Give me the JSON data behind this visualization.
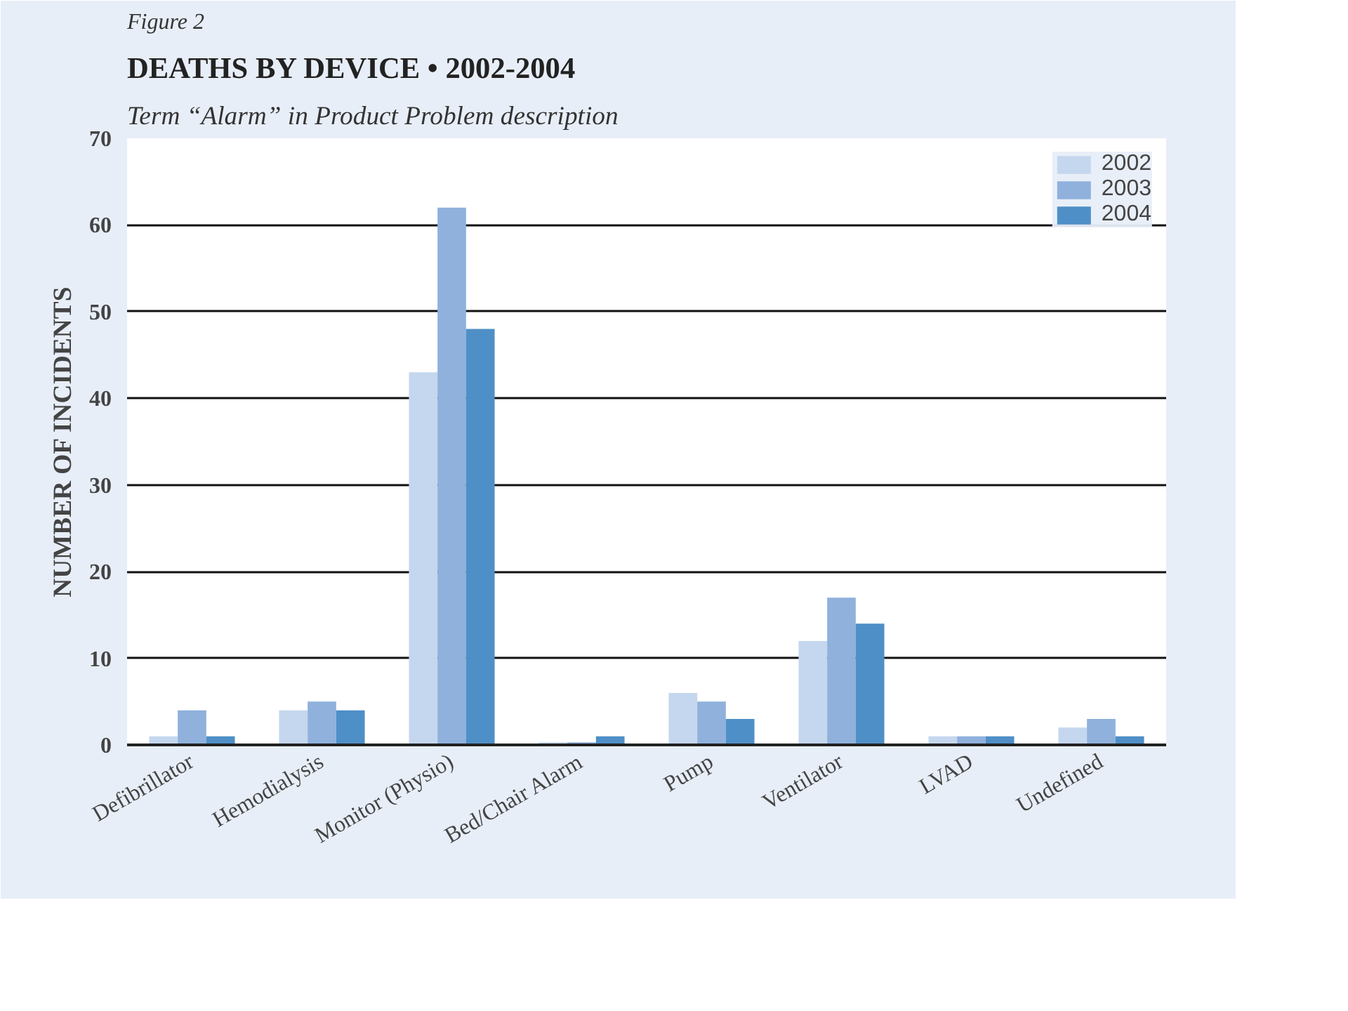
{
  "chart_data": {
    "type": "bar",
    "title": "DEATHS BY DEVICE • 2002-2004",
    "subtitle": "Term “Alarm” in Product Problem description",
    "annotations": [
      "Figure 2"
    ],
    "ylabel": "NUMBER OF INCIDENTS",
    "categories": [
      "Defibrillator",
      "Hemodialysis",
      "Monitor (Physio)",
      "Bed/Chair Alarm",
      "Pump",
      "Ventilator",
      "LVAD",
      "Undefined"
    ],
    "series": [
      {
        "name": "2002",
        "color": "#c5d7ee",
        "values": [
          1,
          4,
          43,
          0.3,
          6,
          12,
          1,
          2
        ]
      },
      {
        "name": "2003",
        "color": "#8fb1dc",
        "values": [
          4,
          5,
          62,
          0.3,
          5,
          17,
          1,
          3
        ]
      },
      {
        "name": "2004",
        "color": "#4f8fc7",
        "values": [
          1,
          4,
          48,
          1,
          3,
          14,
          1,
          1
        ]
      }
    ],
    "ylim": [
      0,
      70
    ],
    "yticks": [
      0,
      10,
      20,
      30,
      40,
      50,
      60,
      70
    ],
    "grid": "y",
    "legend": "top right"
  }
}
